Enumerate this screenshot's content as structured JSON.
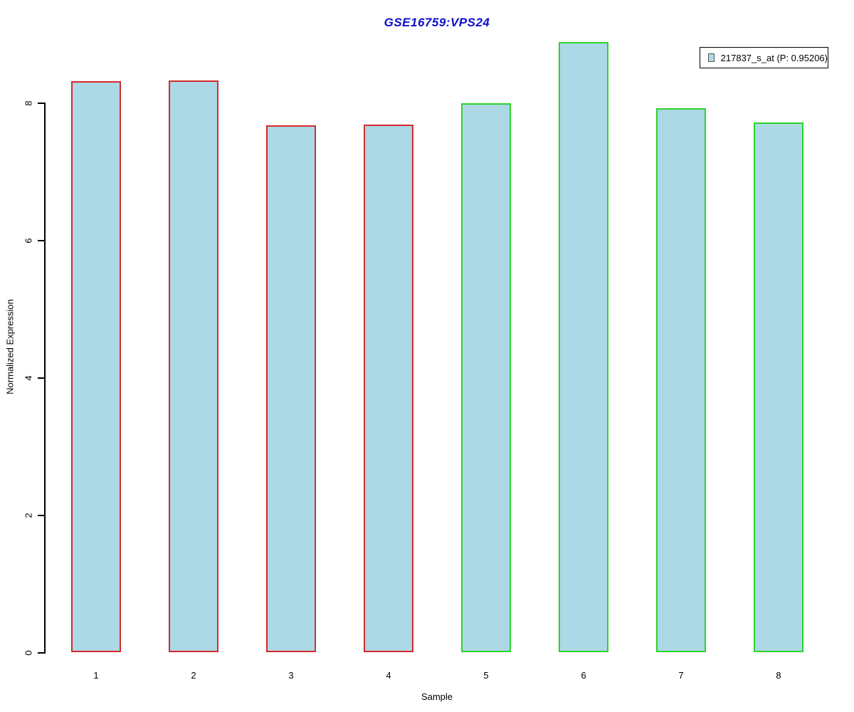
{
  "title": "GSE16759:VPS24",
  "chart_data": {
    "type": "bar",
    "title": "GSE16759:VPS24",
    "xlabel": "Sample",
    "ylabel": "Normalized Expression",
    "categories": [
      "1",
      "2",
      "3",
      "4",
      "5",
      "6",
      "7",
      "8"
    ],
    "values": [
      8.31,
      8.32,
      7.67,
      7.68,
      7.99,
      8.88,
      7.92,
      7.71
    ],
    "bar_groups": [
      "group1",
      "group1",
      "group1",
      "group1",
      "group2",
      "group2",
      "group2",
      "group2"
    ],
    "yticks": [
      0,
      2,
      4,
      6,
      8
    ],
    "ylim": [
      0,
      9
    ],
    "grid": false,
    "legend_position": "topright",
    "legend_entries": [
      "217837_s_at (P: 0.95206)"
    ]
  },
  "legend": {
    "items": [
      {
        "label": "217837_s_at (P: 0.95206)"
      }
    ]
  },
  "colors": {
    "title": "#0D0DCD",
    "bar_fill": "#ADD8E6",
    "group1": "#D42B2B",
    "group2": "#2BD42B",
    "axis": "#000000",
    "legend_swatch_border": "#555555"
  }
}
